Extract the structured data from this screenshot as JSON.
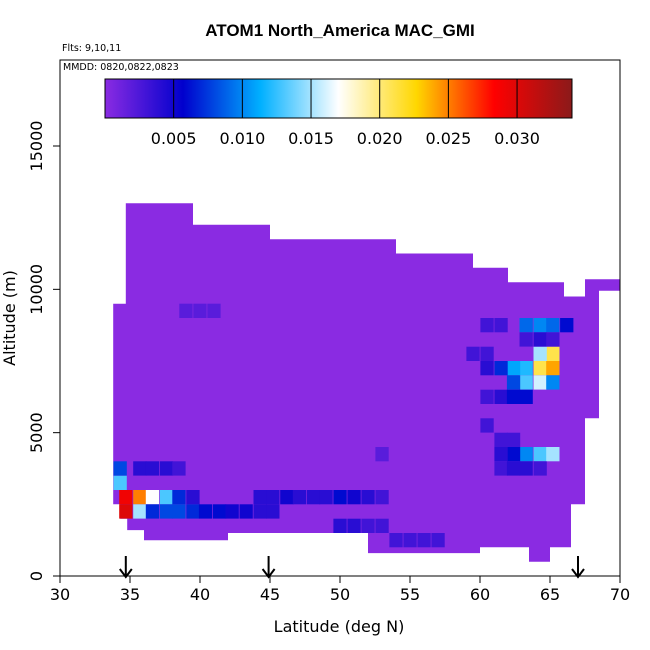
{
  "chart_data": {
    "type": "heatmap",
    "title": "ATOM1 North_America MAC_GMI",
    "flights_label": "Flts: 9,10,11",
    "dates_label": "MMDD: 0820,0822,0823",
    "xlabel": "Latitude (deg N)",
    "ylabel": "Altitude (m)",
    "xlim": [
      30,
      70
    ],
    "ylim": [
      0,
      18000
    ],
    "x_ticks": [
      "30",
      "35",
      "40",
      "45",
      "50",
      "55",
      "60",
      "65",
      "70"
    ],
    "y_ticks": [
      "0",
      "5000",
      "10000",
      "15000"
    ],
    "colorbar": {
      "min": 0.0,
      "max": 0.034,
      "ticks": [
        "0.005",
        "0.010",
        "0.015",
        "0.020",
        "0.025",
        "0.030"
      ],
      "colors": [
        "#8a2be2",
        "#0000cd",
        "#00b0ff",
        "#ffffff",
        "#ffd700",
        "#ff0000",
        "#8b1a1a"
      ]
    },
    "background_value": 0.0,
    "arrows_lat": [
      34.7,
      44.9,
      67.0
    ],
    "cells": [
      [
        64.3,
        7250,
        0.021
      ],
      [
        65.2,
        7250,
        0.024
      ],
      [
        65.2,
        7750,
        0.021
      ],
      [
        64.3,
        7750,
        0.015
      ],
      [
        63.3,
        7250,
        0.012
      ],
      [
        62.4,
        7250,
        0.011
      ],
      [
        63.3,
        6750,
        0.013
      ],
      [
        64.3,
        6750,
        0.016
      ],
      [
        65.2,
        6750,
        0.01
      ],
      [
        62.4,
        6750,
        0.008
      ],
      [
        61.5,
        7250,
        0.007
      ],
      [
        64.3,
        8750,
        0.01
      ],
      [
        63.3,
        8750,
        0.009
      ],
      [
        65.2,
        8750,
        0.009
      ],
      [
        66.2,
        8750,
        0.006
      ],
      [
        64.3,
        8250,
        0.004
      ],
      [
        65.2,
        8250,
        0.003
      ],
      [
        63.3,
        8250,
        0.003
      ],
      [
        60.5,
        8750,
        0.003
      ],
      [
        61.5,
        8750,
        0.003
      ],
      [
        61.5,
        6250,
        0.004
      ],
      [
        62.4,
        6250,
        0.006
      ],
      [
        63.3,
        6250,
        0.006
      ],
      [
        60.5,
        6250,
        0.003
      ],
      [
        64.3,
        4250,
        0.013
      ],
      [
        65.2,
        4250,
        0.015
      ],
      [
        63.3,
        4250,
        0.01
      ],
      [
        62.4,
        4250,
        0.006
      ],
      [
        61.5,
        4250,
        0.004
      ],
      [
        61.5,
        4750,
        0.003
      ],
      [
        62.4,
        4750,
        0.003
      ],
      [
        61.5,
        3750,
        0.003
      ],
      [
        62.4,
        3750,
        0.004
      ],
      [
        63.3,
        3750,
        0.004
      ],
      [
        64.3,
        3750,
        0.003
      ],
      [
        34.7,
        2750,
        0.029
      ],
      [
        35.7,
        2750,
        0.025
      ],
      [
        36.6,
        2750,
        0.017
      ],
      [
        37.6,
        2750,
        0.013
      ],
      [
        38.5,
        2750,
        0.007
      ],
      [
        39.5,
        2750,
        0.004
      ],
      [
        35.7,
        2250,
        0.015
      ],
      [
        34.7,
        2250,
        0.03
      ],
      [
        34.3,
        3250,
        0.013
      ],
      [
        34.3,
        3750,
        0.008
      ],
      [
        35.7,
        3750,
        0.004
      ],
      [
        36.6,
        3750,
        0.004
      ],
      [
        37.6,
        3750,
        0.004
      ],
      [
        38.5,
        3750,
        0.003
      ],
      [
        36.6,
        2250,
        0.007
      ],
      [
        37.6,
        2250,
        0.008
      ],
      [
        38.5,
        2250,
        0.008
      ],
      [
        39.5,
        2250,
        0.007
      ],
      [
        40.4,
        2250,
        0.006
      ],
      [
        41.4,
        2250,
        0.006
      ],
      [
        42.3,
        2250,
        0.005
      ],
      [
        43.3,
        2250,
        0.005
      ],
      [
        44.3,
        2250,
        0.004
      ],
      [
        45.2,
        2250,
        0.004
      ],
      [
        44.3,
        2750,
        0.004
      ],
      [
        45.2,
        2750,
        0.004
      ],
      [
        46.2,
        2750,
        0.005
      ],
      [
        47.1,
        2750,
        0.004
      ],
      [
        48.1,
        2750,
        0.004
      ],
      [
        49.0,
        2750,
        0.004
      ],
      [
        50.0,
        2750,
        0.006
      ],
      [
        51.0,
        2750,
        0.005
      ],
      [
        52.0,
        2750,
        0.004
      ],
      [
        53.0,
        2750,
        0.003
      ],
      [
        50.0,
        1750,
        0.004
      ],
      [
        51.0,
        1750,
        0.004
      ],
      [
        52.0,
        1750,
        0.003
      ],
      [
        53.0,
        1750,
        0.003
      ],
      [
        54.0,
        1250,
        0.003
      ],
      [
        55.0,
        1250,
        0.003
      ],
      [
        56.0,
        1250,
        0.003
      ],
      [
        57.0,
        1250,
        0.003
      ],
      [
        60.5,
        5250,
        0.003
      ],
      [
        60.5,
        7750,
        0.003
      ],
      [
        60.5,
        7250,
        0.004
      ],
      [
        59.5,
        7750,
        0.003
      ],
      [
        53.0,
        4250,
        0.002
      ],
      [
        39.0,
        9250,
        0.002
      ],
      [
        40.0,
        9250,
        0.002
      ],
      [
        41.0,
        9250,
        0.002
      ]
    ]
  }
}
